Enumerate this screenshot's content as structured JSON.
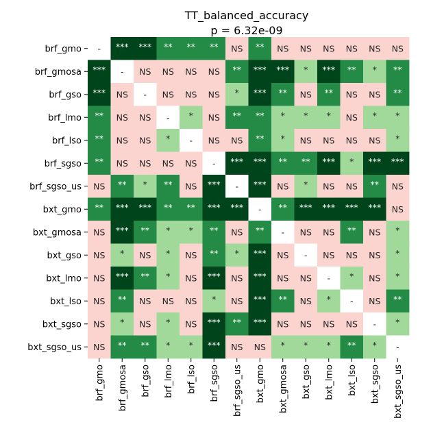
{
  "chart_data": {
    "type": "heatmap",
    "title": "TT_balanced_accuracy",
    "subtitle": "p = 6.32e-09",
    "xlabel": "",
    "ylabel": "",
    "row_labels": [
      "brf_gmo",
      "brf_gmosa",
      "brf_gso",
      "brf_lmo",
      "brf_lso",
      "brf_sgso",
      "brf_sgso_us",
      "bxt_gmo",
      "bxt_gmosa",
      "bxt_gso",
      "bxt_lmo",
      "bxt_lso",
      "bxt_sgso",
      "bxt_sgso_us"
    ],
    "col_labels": [
      "brf_gmo",
      "brf_gmosa",
      "brf_gso",
      "brf_lmo",
      "brf_lso",
      "brf_sgso",
      "brf_sgso_us",
      "bxt_gmo",
      "bxt_gmosa",
      "bxt_gso",
      "bxt_lmo",
      "bxt_lso",
      "bxt_sgso",
      "bxt_sgso_us"
    ],
    "cells": [
      [
        "-",
        "***",
        "***",
        "**",
        "**",
        "**",
        "NS",
        "**",
        "NS",
        "NS",
        "NS",
        "NS",
        "NS",
        "NS"
      ],
      [
        "***",
        "-",
        "NS",
        "NS",
        "NS",
        "NS",
        "**",
        "***",
        "***",
        "*",
        "***",
        "**",
        "*",
        "**"
      ],
      [
        "***",
        "NS",
        "-",
        "NS",
        "NS",
        "NS",
        "*",
        "***",
        "**",
        "NS",
        "**",
        "NS",
        "NS",
        "**"
      ],
      [
        "**",
        "NS",
        "NS",
        "-",
        "*",
        "NS",
        "**",
        "**",
        "*",
        "*",
        "*",
        "NS",
        "*",
        "*"
      ],
      [
        "**",
        "NS",
        "NS",
        "*",
        "-",
        "NS",
        "NS",
        "**",
        "*",
        "NS",
        "NS",
        "NS",
        "NS",
        "*"
      ],
      [
        "**",
        "NS",
        "NS",
        "NS",
        "NS",
        "-",
        "***",
        "***",
        "**",
        "**",
        "***",
        "*",
        "***",
        "***"
      ],
      [
        "NS",
        "**",
        "*",
        "**",
        "NS",
        "***",
        "-",
        "***",
        "NS",
        "*",
        "NS",
        "NS",
        "**",
        "NS"
      ],
      [
        "**",
        "***",
        "***",
        "**",
        "**",
        "***",
        "***",
        "-",
        "**",
        "***",
        "***",
        "***",
        "***",
        "NS"
      ],
      [
        "NS",
        "***",
        "**",
        "*",
        "*",
        "**",
        "NS",
        "**",
        "-",
        "NS",
        "NS",
        "**",
        "NS",
        "*"
      ],
      [
        "NS",
        "*",
        "NS",
        "*",
        "NS",
        "**",
        "*",
        "***",
        "NS",
        "-",
        "NS",
        "NS",
        "NS",
        "*"
      ],
      [
        "NS",
        "***",
        "**",
        "*",
        "NS",
        "***",
        "NS",
        "***",
        "NS",
        "NS",
        "-",
        "*",
        "NS",
        "*"
      ],
      [
        "NS",
        "**",
        "NS",
        "NS",
        "NS",
        "*",
        "NS",
        "***",
        "**",
        "NS",
        "*",
        "-",
        "NS",
        "**"
      ],
      [
        "NS",
        "*",
        "NS",
        "*",
        "NS",
        "***",
        "**",
        "***",
        "NS",
        "NS",
        "NS",
        "NS",
        "-",
        "*"
      ],
      [
        "NS",
        "**",
        "**",
        "*",
        "*",
        "***",
        "NS",
        "NS",
        "*",
        "*",
        "*",
        "**",
        "*",
        "-"
      ]
    ],
    "legend": "none",
    "grid": false,
    "colors": {
      "NS": "#fbd4d0",
      "*": "#a1d99b",
      "**": "#238b45",
      "***": "#00441b",
      "-": "#ffffff",
      "text_light": "#ffffff",
      "text_dark": "#262626"
    }
  }
}
